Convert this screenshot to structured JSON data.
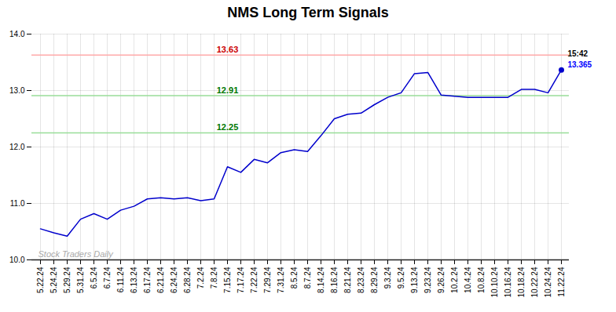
{
  "chart_data": {
    "type": "line",
    "title": "NMS Long Term Signals",
    "categories": [
      "5.22.24",
      "5.24.24",
      "5.29.24",
      "5.31.24",
      "6.5.24",
      "6.7.24",
      "6.11.24",
      "6.13.24",
      "6.17.24",
      "6.21.24",
      "6.24.24",
      "6.28.24",
      "7.2.24",
      "7.8.24",
      "7.15.24",
      "7.17.24",
      "7.22.24",
      "7.29.24",
      "7.31.24",
      "8.5.24",
      "8.7.24",
      "8.14.24",
      "8.16.24",
      "8.21.24",
      "8.23.24",
      "8.29.24",
      "9.3.24",
      "9.5.24",
      "9.13.24",
      "9.23.24",
      "9.26.24",
      "10.2.24",
      "10.4.24",
      "10.8.24",
      "10.10.24",
      "10.16.24",
      "10.18.24",
      "10.22.24",
      "10.24.24",
      "11.22.24"
    ],
    "values": [
      10.55,
      10.48,
      10.42,
      10.72,
      10.82,
      10.72,
      10.88,
      10.95,
      11.08,
      11.1,
      11.08,
      11.1,
      11.05,
      11.08,
      11.65,
      11.55,
      11.78,
      11.72,
      11.9,
      11.95,
      11.92,
      12.2,
      12.5,
      12.58,
      12.6,
      12.75,
      12.88,
      12.96,
      13.3,
      13.32,
      12.92,
      12.9,
      12.88,
      12.88,
      12.88,
      12.88,
      13.02,
      13.02,
      12.96,
      13.365
    ],
    "color": "#0000cc",
    "end_marker": {
      "color": "#0000cc"
    },
    "reference_lines": [
      {
        "value": 13.63,
        "color": "#ffaaaa",
        "label": "13.63",
        "label_color": "#cc0000"
      },
      {
        "value": 12.91,
        "color": "#99dd99",
        "label": "12.91",
        "label_color": "#007700"
      },
      {
        "value": 12.25,
        "color": "#99dd99",
        "label": "12.25",
        "label_color": "#007700"
      }
    ],
    "annotations": [
      {
        "text": "15:42",
        "color": "#000000"
      },
      {
        "text": "13.365",
        "color": "#0000ff"
      }
    ],
    "watermark": {
      "text": "Stock Traders Daily",
      "color": "#aaaaaa"
    },
    "ylim": [
      10,
      14
    ],
    "yticks": [
      10,
      11,
      12,
      13,
      14
    ],
    "grid": true
  }
}
